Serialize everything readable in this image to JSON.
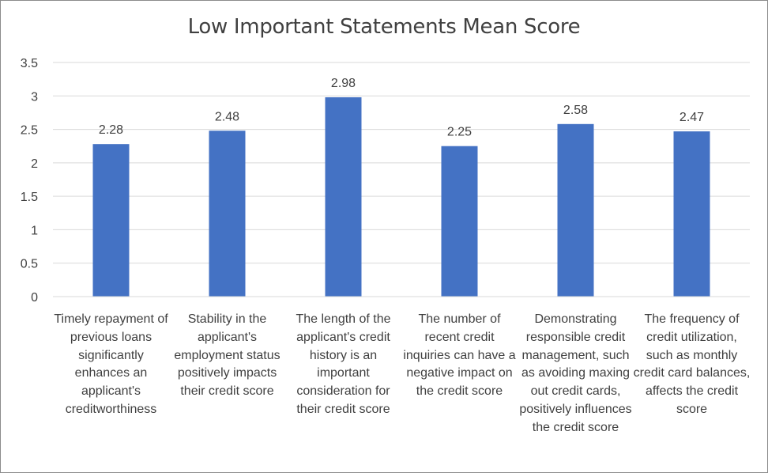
{
  "chart_data": {
    "type": "bar",
    "title": "Low Important Statements Mean Score",
    "xlabel": "",
    "ylabel": "",
    "categories": [
      "Timely repayment of previous loans significantly enhances an applicant's creditworthiness",
      "Stability in the applicant's employment status positively impacts their credit score",
      "The length of the applicant's credit history is an important consideration for their credit score",
      "The number of recent credit inquiries can have a negative impact on the credit score",
      "Demonstrating responsible credit management, such as avoiding maxing out credit cards, positively influences the credit score",
      "The frequency of credit utilization, such as monthly credit card balances, affects the credit score"
    ],
    "values": [
      2.28,
      2.48,
      2.98,
      2.25,
      2.58,
      2.47
    ],
    "data_labels": [
      "2.28",
      "2.48",
      "2.98",
      "2.25",
      "2.58",
      "2.47"
    ],
    "ylim": [
      0,
      3.5
    ],
    "yticks": [
      "0",
      "0.5",
      "1",
      "1.5",
      "2",
      "2.5",
      "3",
      "3.5"
    ],
    "grid": true,
    "legend": "none",
    "bar_color": "#4472C4",
    "gridline_color": "#D9D9D9",
    "text_color": "#404040"
  }
}
